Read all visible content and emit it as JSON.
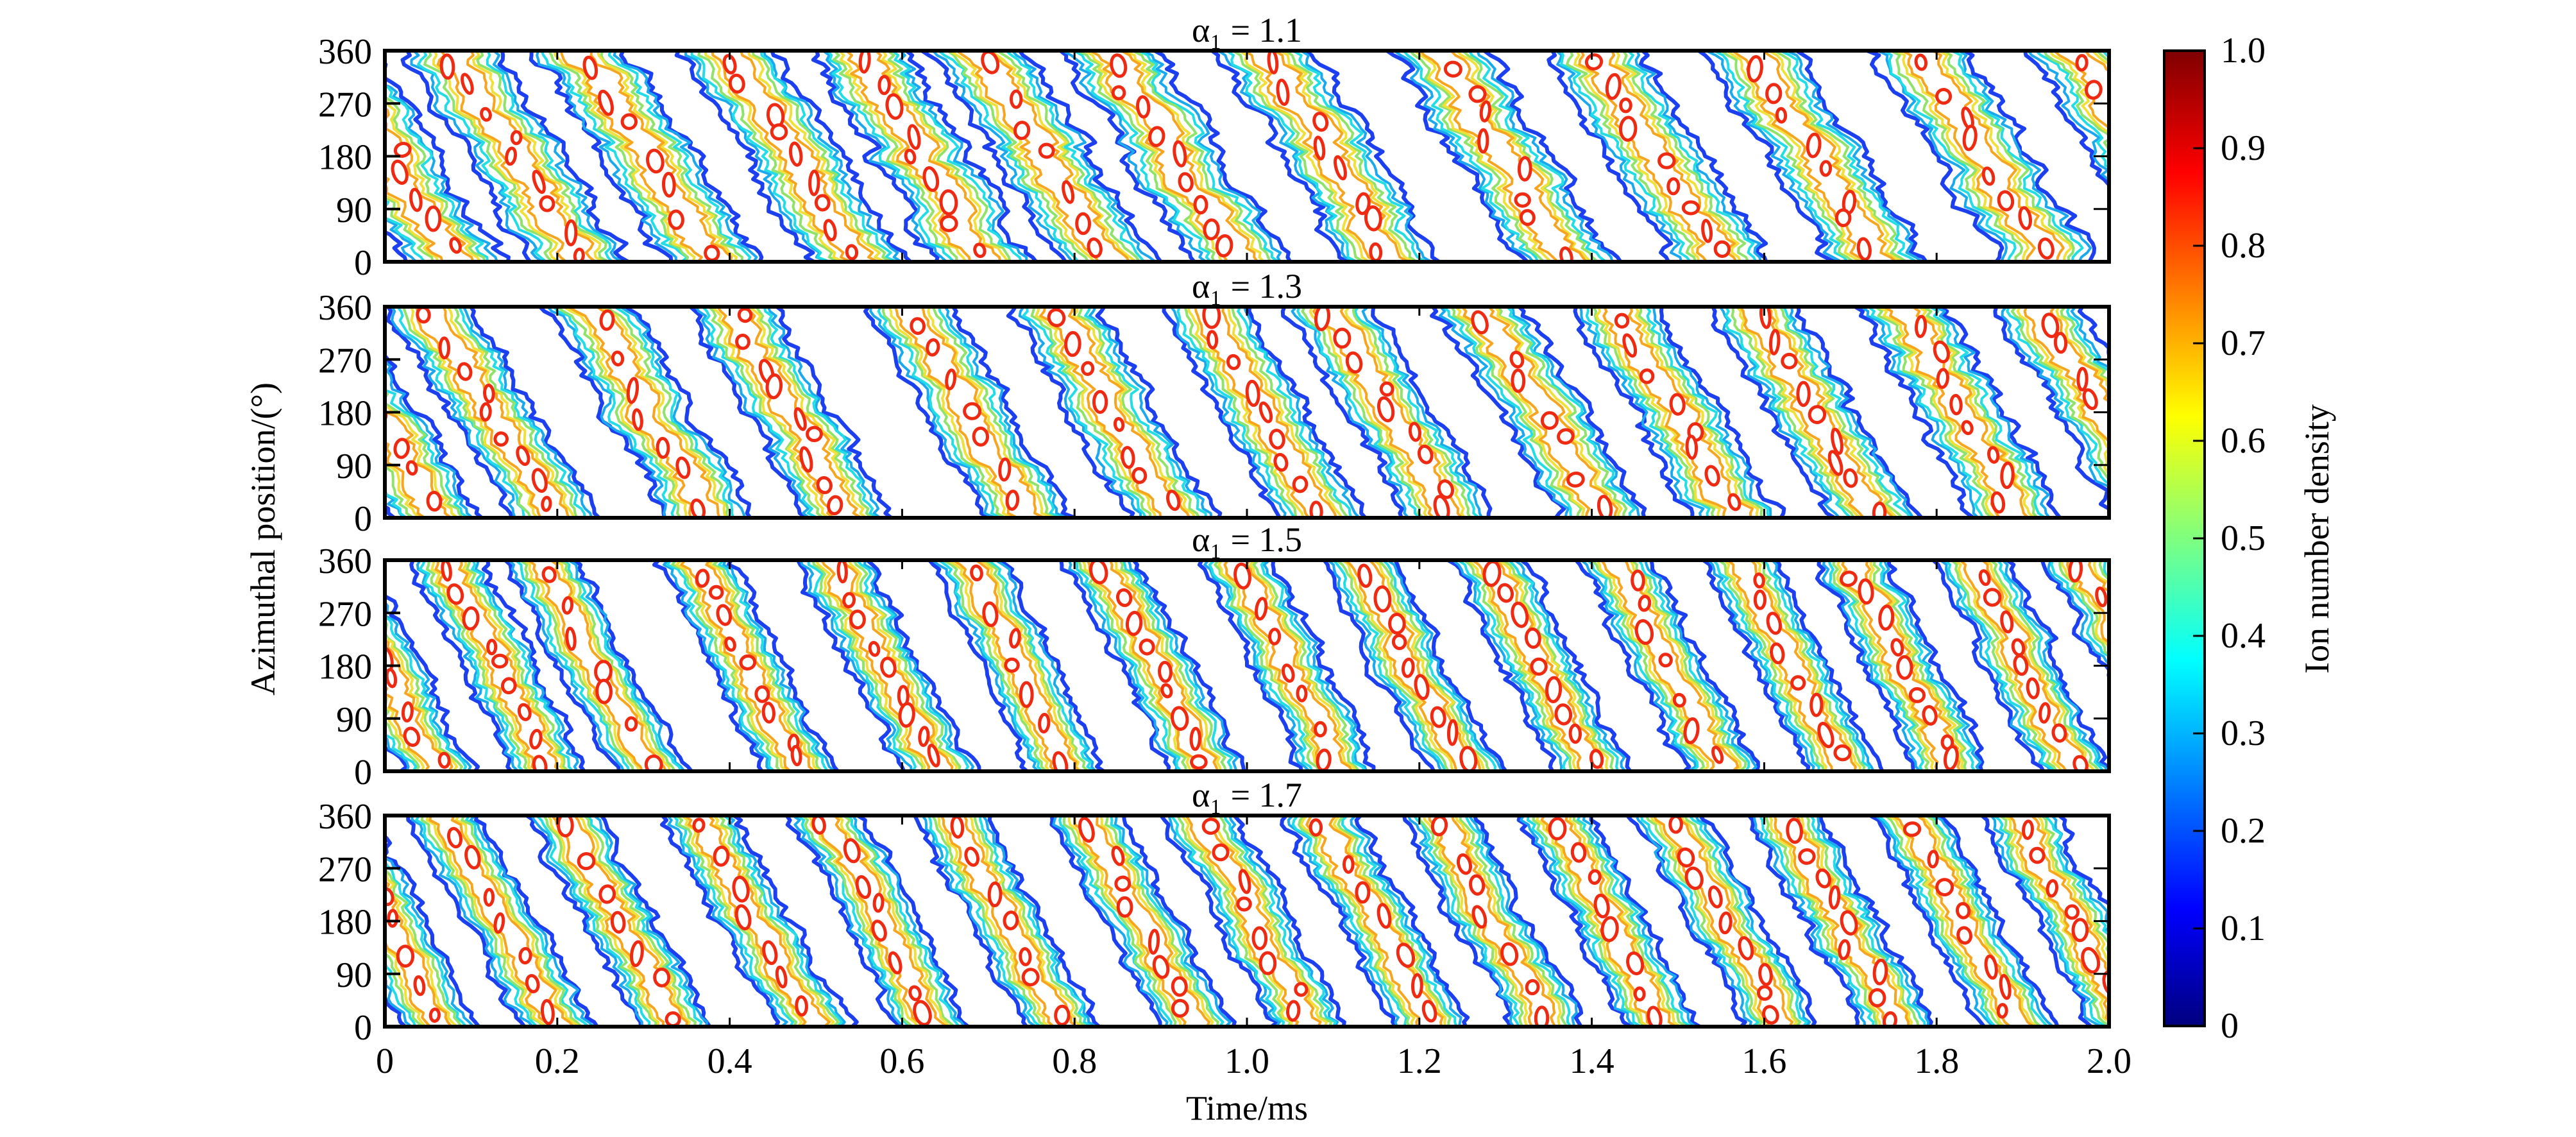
{
  "chart_data": {
    "type": "heatmap",
    "subtype": "contour",
    "xlabel": "Time/ms",
    "ylabel": "Azimuthal position/(°)",
    "xlim": [
      0,
      2.0
    ],
    "ylim": [
      0,
      360
    ],
    "xticks": [
      0,
      0.2,
      0.4,
      0.6,
      0.8,
      1.0,
      1.2,
      1.4,
      1.6,
      1.8,
      2.0
    ],
    "xtick_labels": [
      "0",
      "0.2",
      "0.4",
      "0.6",
      "0.8",
      "1.0",
      "1.2",
      "1.4",
      "1.6",
      "1.8",
      "2.0"
    ],
    "yticks": [
      0,
      90,
      180,
      270,
      360
    ],
    "ytick_labels": [
      "0",
      "90",
      "180",
      "270",
      "360"
    ],
    "colorbar": {
      "label": "Ion number density",
      "colormap": "jet",
      "range": [
        0,
        1.0
      ],
      "ticks": [
        0,
        0.1,
        0.2,
        0.3,
        0.4,
        0.5,
        0.6,
        0.7,
        0.8,
        0.9,
        1.0
      ],
      "tick_labels": [
        "0",
        "0.1",
        "0.2",
        "0.3",
        "0.4",
        "0.5",
        "0.6",
        "0.7",
        "0.8",
        "0.9",
        "1.0"
      ]
    },
    "contour_levels": [
      0.2,
      0.3,
      0.4,
      0.5,
      0.6,
      0.7,
      0.9
    ],
    "contour_colors": [
      "#1c3ff0",
      "#1aa8ee",
      "#22dde6",
      "#8fe36a",
      "#f0e03a",
      "#f7a51f",
      "#ee2a12"
    ],
    "panels": [
      {
        "title": "α₁ = 1.1",
        "alpha1": 1.1,
        "band_times_at_360deg_ms": [
          -0.07,
          0.076,
          0.23,
          0.4,
          0.545,
          0.686,
          0.84,
          1.02,
          1.22,
          1.4,
          1.58,
          1.78,
          1.96
        ],
        "band_transit_ms": 0.15,
        "band_halfwidth_ms": 0.055
      },
      {
        "title": "α₁ = 1.3",
        "alpha1": 1.3,
        "band_times_at_360deg_ms": [
          -0.08,
          0.057,
          0.236,
          0.4,
          0.61,
          0.776,
          0.95,
          1.098,
          1.27,
          1.43,
          1.586,
          1.76,
          1.92
        ],
        "band_transit_ms": 0.14,
        "band_halfwidth_ms": 0.05
      },
      {
        "title": "α₁ = 1.5",
        "alpha1": 1.5,
        "band_times_at_360deg_ms": [
          -0.06,
          0.07,
          0.185,
          0.36,
          0.52,
          0.675,
          0.834,
          0.988,
          1.13,
          1.28,
          1.43,
          1.57,
          1.7,
          1.84,
          1.97
        ],
        "band_transit_ms": 0.12,
        "band_halfwidth_ms": 0.042
      },
      {
        "title": "α₁ = 1.7",
        "alpha1": 1.7,
        "band_times_at_360deg_ms": [
          -0.06,
          0.07,
          0.205,
          0.365,
          0.51,
          0.655,
          0.81,
          0.944,
          1.085,
          1.22,
          1.355,
          1.49,
          1.625,
          1.766,
          1.895
        ],
        "band_transit_ms": 0.13,
        "band_halfwidth_ms": 0.042
      }
    ]
  }
}
